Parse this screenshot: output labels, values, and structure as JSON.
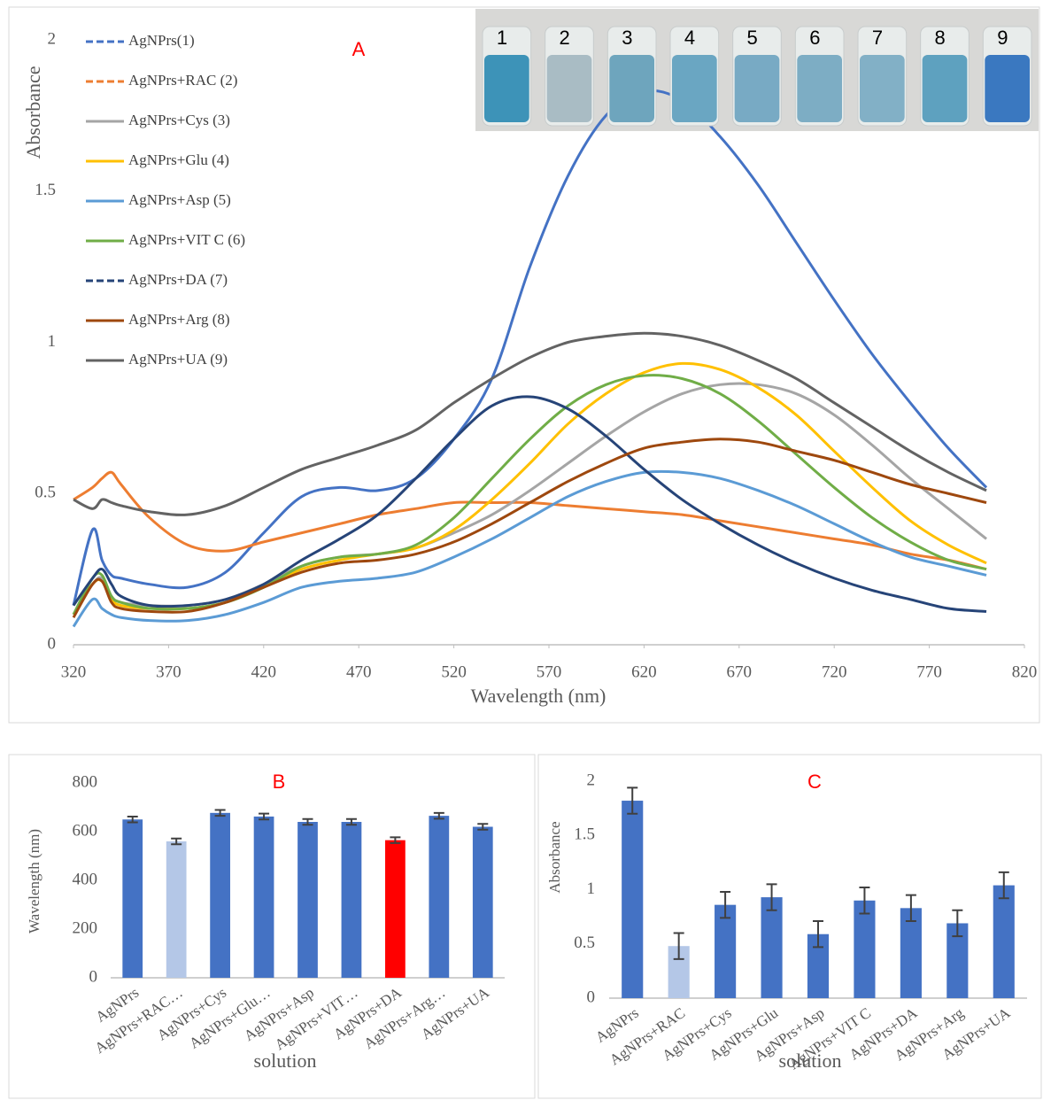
{
  "chart_data": [
    {
      "type": "line",
      "annotation": "A",
      "x_label": "Wavelength (nm)",
      "y_label": "Absorbance",
      "inset_labels": [
        "1",
        "2",
        "3",
        "4",
        "5",
        "6",
        "7",
        "8",
        "9"
      ],
      "xlim": [
        320,
        820
      ],
      "xticks": [
        320,
        370,
        420,
        470,
        520,
        570,
        620,
        670,
        720,
        770,
        820
      ],
      "ylim": [
        0,
        2
      ],
      "yticks": [
        0,
        0.5,
        1,
        1.5,
        2
      ],
      "x": [
        320,
        330,
        335,
        340,
        345,
        360,
        380,
        400,
        420,
        440,
        460,
        480,
        500,
        520,
        540,
        560,
        580,
        600,
        620,
        640,
        660,
        680,
        700,
        720,
        740,
        760,
        780,
        800
      ],
      "series": [
        {
          "name": "AgNPrs(1)",
          "color": "#4472c4",
          "legend_dashed": true,
          "values": [
            0.13,
            0.38,
            0.28,
            0.23,
            0.22,
            0.2,
            0.19,
            0.24,
            0.37,
            0.49,
            0.52,
            0.51,
            0.55,
            0.68,
            0.88,
            1.25,
            1.55,
            1.75,
            1.83,
            1.8,
            1.68,
            1.52,
            1.33,
            1.14,
            0.96,
            0.8,
            0.65,
            0.52
          ]
        },
        {
          "name": "AgNPrs+RAC (2)",
          "color": "#ed7d31",
          "legend_dashed": true,
          "values": [
            0.48,
            0.52,
            0.55,
            0.57,
            0.53,
            0.42,
            0.33,
            0.31,
            0.34,
            0.37,
            0.4,
            0.43,
            0.45,
            0.47,
            0.47,
            0.47,
            0.46,
            0.45,
            0.44,
            0.43,
            0.41,
            0.39,
            0.37,
            0.35,
            0.33,
            0.3,
            0.28,
            0.25
          ]
        },
        {
          "name": "AgNPrs+Cys (3)",
          "color": "#a5a5a5",
          "values": [
            0.1,
            0.2,
            0.22,
            0.16,
            0.14,
            0.13,
            0.13,
            0.15,
            0.2,
            0.26,
            0.29,
            0.3,
            0.32,
            0.37,
            0.43,
            0.51,
            0.6,
            0.69,
            0.77,
            0.83,
            0.86,
            0.86,
            0.83,
            0.76,
            0.66,
            0.55,
            0.45,
            0.35
          ]
        },
        {
          "name": "AgNPrs+Glu (4)",
          "color": "#ffc000",
          "values": [
            0.1,
            0.2,
            0.21,
            0.15,
            0.13,
            0.12,
            0.12,
            0.14,
            0.19,
            0.25,
            0.28,
            0.3,
            0.32,
            0.38,
            0.48,
            0.6,
            0.73,
            0.83,
            0.9,
            0.93,
            0.91,
            0.85,
            0.76,
            0.64,
            0.52,
            0.41,
            0.33,
            0.27
          ]
        },
        {
          "name": "AgNPrs+Asp (5)",
          "color": "#5b9bd5",
          "values": [
            0.06,
            0.15,
            0.12,
            0.1,
            0.09,
            0.08,
            0.08,
            0.1,
            0.14,
            0.19,
            0.21,
            0.22,
            0.24,
            0.29,
            0.35,
            0.42,
            0.49,
            0.54,
            0.57,
            0.57,
            0.55,
            0.51,
            0.46,
            0.4,
            0.34,
            0.29,
            0.26,
            0.23
          ]
        },
        {
          "name": "AgNPrs+VIT C (6)",
          "color": "#70ad47",
          "values": [
            0.1,
            0.22,
            0.23,
            0.16,
            0.14,
            0.12,
            0.12,
            0.14,
            0.19,
            0.26,
            0.29,
            0.3,
            0.33,
            0.42,
            0.55,
            0.68,
            0.79,
            0.86,
            0.89,
            0.88,
            0.83,
            0.74,
            0.63,
            0.52,
            0.42,
            0.34,
            0.28,
            0.25
          ]
        },
        {
          "name": "AgNPrs+DA (7)",
          "color": "#264478",
          "legend_dashed": true,
          "values": [
            0.13,
            0.22,
            0.25,
            0.2,
            0.16,
            0.13,
            0.13,
            0.15,
            0.2,
            0.28,
            0.35,
            0.43,
            0.55,
            0.68,
            0.79,
            0.82,
            0.78,
            0.69,
            0.58,
            0.48,
            0.4,
            0.33,
            0.27,
            0.22,
            0.18,
            0.15,
            0.12,
            0.11
          ]
        },
        {
          "name": "AgNPrs+Arg (8)",
          "color": "#9e480e",
          "values": [
            0.09,
            0.2,
            0.21,
            0.14,
            0.12,
            0.11,
            0.11,
            0.14,
            0.19,
            0.24,
            0.27,
            0.28,
            0.3,
            0.34,
            0.4,
            0.47,
            0.54,
            0.6,
            0.65,
            0.67,
            0.68,
            0.67,
            0.64,
            0.61,
            0.57,
            0.53,
            0.5,
            0.47
          ]
        },
        {
          "name": "AgNPrs+UA (9)",
          "color": "#636363",
          "values": [
            0.48,
            0.45,
            0.48,
            0.47,
            0.46,
            0.44,
            0.43,
            0.46,
            0.52,
            0.58,
            0.62,
            0.66,
            0.71,
            0.8,
            0.88,
            0.95,
            1.0,
            1.02,
            1.03,
            1.02,
            0.99,
            0.94,
            0.88,
            0.8,
            0.72,
            0.64,
            0.57,
            0.51
          ]
        }
      ]
    },
    {
      "type": "bar",
      "annotation": "B",
      "x_label": "solution",
      "y_label": "Wavelength (nm)",
      "categories": [
        "AgNPrs",
        "AgNPrs+RAC…",
        "AgNPrs+Cys",
        "AgNPrs+Glu…",
        "AgNPrs+Asp",
        "AgNPrs+VIT…",
        "AgNPrs+DA",
        "AgNPrs+Arg…",
        "AgNPrs+UA"
      ],
      "values": [
        650,
        560,
        677,
        662,
        640,
        640,
        565,
        665,
        620
      ],
      "errors": [
        12,
        12,
        12,
        12,
        12,
        12,
        12,
        12,
        12
      ],
      "colors": [
        "#4472c4",
        "#b4c7e7",
        "#4472c4",
        "#4472c4",
        "#4472c4",
        "#4472c4",
        "#ff0000",
        "#4472c4",
        "#4472c4"
      ],
      "ylim": [
        0,
        800
      ],
      "yticks": [
        0,
        200,
        400,
        600,
        800
      ]
    },
    {
      "type": "bar",
      "annotation": "C",
      "x_label": "solution",
      "y_label": "Absorbance",
      "categories": [
        "AgNPrs",
        "AgNPrs+RAC",
        "AgNPrs+Cys",
        "AgNPrs+Glu",
        "AgNPrs+Asp",
        "AgNPrs+VIT C",
        "AgNPrs+DA",
        "AgNPrs+Arg",
        "AgNPrs+UA"
      ],
      "values": [
        1.82,
        0.48,
        0.86,
        0.93,
        0.59,
        0.9,
        0.83,
        0.69,
        1.04
      ],
      "errors": [
        0.12,
        0.12,
        0.12,
        0.12,
        0.12,
        0.12,
        0.12,
        0.12,
        0.12
      ],
      "colors": [
        "#4472c4",
        "#b4c7e7",
        "#4472c4",
        "#4472c4",
        "#4472c4",
        "#4472c4",
        "#4472c4",
        "#4472c4",
        "#4472c4"
      ],
      "ylim": [
        0,
        2
      ],
      "yticks": [
        0,
        0.5,
        1,
        1.5,
        2
      ]
    }
  ]
}
